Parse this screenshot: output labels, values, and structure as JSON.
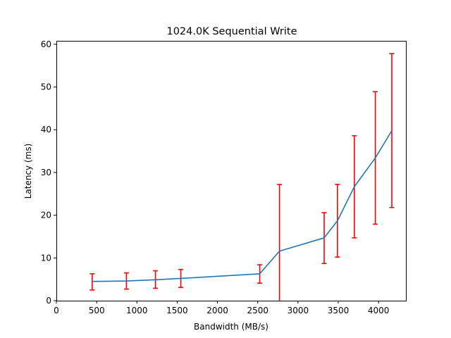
{
  "chart_data": {
    "type": "line",
    "title": "1024.0K  Sequential Write",
    "xlabel": "Bandwidth (MB/s)",
    "ylabel": "Latency (ms)",
    "xlim": [
      0,
      4340
    ],
    "ylim": [
      0,
      60.8
    ],
    "xticks": [
      0,
      500,
      1000,
      1500,
      2000,
      2500,
      3000,
      3500,
      4000
    ],
    "yticks": [
      0,
      10,
      20,
      30,
      40,
      50,
      60
    ],
    "grid": false,
    "legend": "none",
    "colors": {
      "line": "#1f77b4",
      "errorbar": "#ff0000"
    },
    "series": [
      {
        "x": [
          445,
          870,
          1230,
          1545,
          2525,
          2770,
          3325,
          3490,
          3700,
          3960,
          4165
        ],
        "y": [
          4.5,
          4.6,
          4.9,
          5.2,
          6.3,
          11.6,
          14.7,
          18.7,
          26.7,
          33.4,
          39.8
        ],
        "err_low": [
          2.5,
          2.7,
          2.9,
          3.1,
          4.1,
          0,
          8.7,
          10.2,
          14.7,
          17.9,
          21.8
        ],
        "err_high": [
          6.3,
          6.5,
          7.0,
          7.3,
          8.4,
          27.2,
          20.6,
          27.2,
          38.6,
          48.9,
          57.8
        ]
      }
    ]
  }
}
